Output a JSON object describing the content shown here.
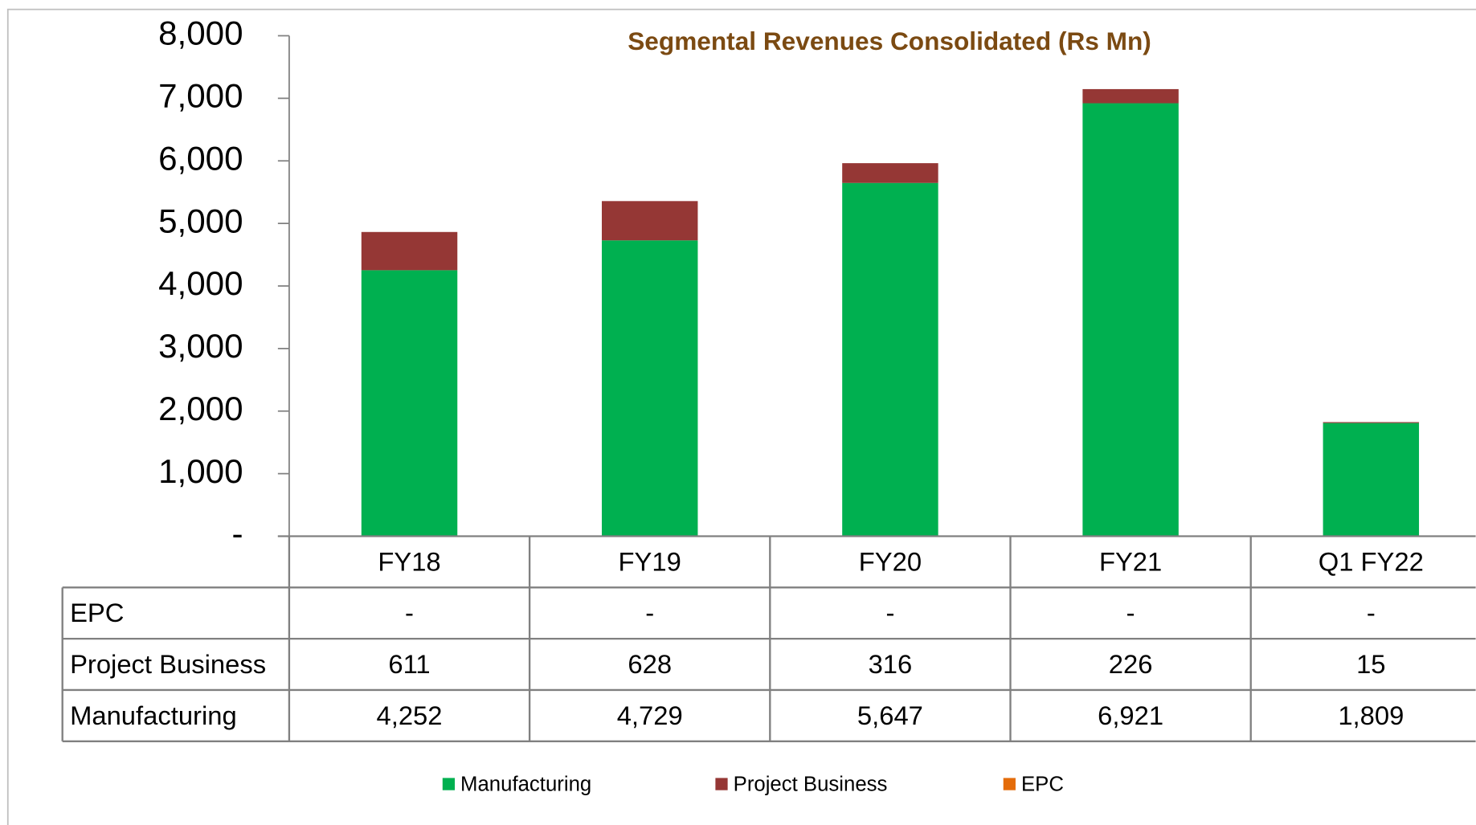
{
  "chart_data": {
    "type": "bar",
    "stacked": true,
    "title": "Segmental Revenues  Consolidated (Rs Mn)",
    "categories": [
      "FY18",
      "FY19",
      "FY20",
      "FY21",
      "Q1 FY22"
    ],
    "series": [
      {
        "name": "Manufacturing",
        "color": "#00b050",
        "values": [
          4252,
          4729,
          5647,
          6921,
          1809
        ],
        "value_labels": [
          "4,252",
          "4,729",
          "5,647",
          "6,921",
          "1,809"
        ]
      },
      {
        "name": "Project Business",
        "color": "#953735",
        "values": [
          611,
          628,
          316,
          226,
          15
        ],
        "value_labels": [
          "611",
          "628",
          "316",
          "226",
          "15"
        ]
      },
      {
        "name": "EPC",
        "color": "#e46c0a",
        "values": [
          0,
          0,
          0,
          0,
          0
        ],
        "value_labels": [
          "-",
          "-",
          "-",
          "-",
          "-"
        ]
      }
    ],
    "ylim": [
      0,
      8000
    ],
    "yticks": [
      {
        "value": 0,
        "label": "-"
      },
      {
        "value": 1000,
        "label": "1,000"
      },
      {
        "value": 2000,
        "label": "2,000"
      },
      {
        "value": 3000,
        "label": "3,000"
      },
      {
        "value": 4000,
        "label": "4,000"
      },
      {
        "value": 5000,
        "label": "5,000"
      },
      {
        "value": 6000,
        "label": "6,000"
      },
      {
        "value": 7000,
        "label": "7,000"
      },
      {
        "value": 8000,
        "label": "8,000"
      }
    ],
    "grid": false,
    "legend": "bottom",
    "data_table": true
  }
}
